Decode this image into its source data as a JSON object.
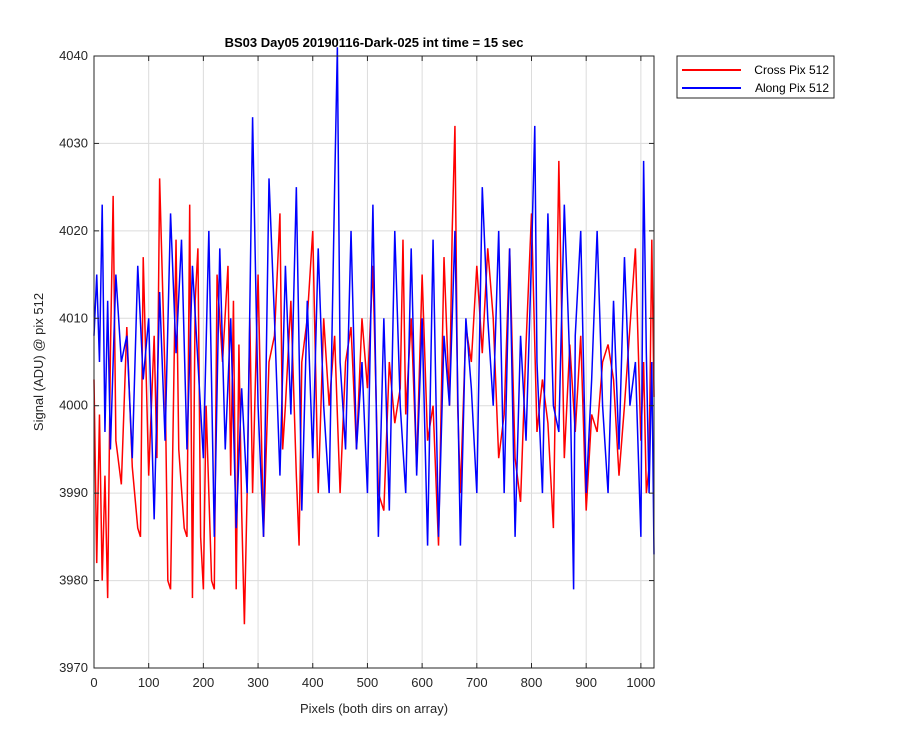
{
  "chart_data": {
    "type": "line",
    "title": "BS03 Day05 20190116-Dark-025 int time = 15 sec",
    "xlabel": "Pixels (both dirs on array)",
    "ylabel": "Signal (ADU) @ pix 512",
    "xlim": [
      0,
      1024
    ],
    "ylim": [
      3970,
      4040
    ],
    "xticks": [
      "0",
      "100",
      "200",
      "300",
      "400",
      "500",
      "600",
      "700",
      "800",
      "900",
      "1000"
    ],
    "yticks": [
      "3970",
      "3980",
      "3990",
      "4000",
      "4010",
      "4020",
      "4030",
      "4040"
    ],
    "grid": true,
    "legend_position": "outside top-right",
    "series": [
      {
        "name": "Cross Pix 512",
        "color": "#ff0000",
        "points": [
          [
            0,
            4003
          ],
          [
            5,
            3982
          ],
          [
            10,
            3999
          ],
          [
            15,
            3980
          ],
          [
            20,
            3992
          ],
          [
            25,
            3978
          ],
          [
            30,
            4006
          ],
          [
            35,
            4024
          ],
          [
            40,
            3996
          ],
          [
            50,
            3991
          ],
          [
            60,
            4009
          ],
          [
            70,
            3993
          ],
          [
            80,
            3986
          ],
          [
            85,
            3985
          ],
          [
            90,
            4017
          ],
          [
            100,
            3992
          ],
          [
            110,
            4008
          ],
          [
            115,
            3994
          ],
          [
            120,
            4026
          ],
          [
            130,
            4003
          ],
          [
            135,
            3980
          ],
          [
            140,
            3979
          ],
          [
            150,
            4019
          ],
          [
            155,
            3995
          ],
          [
            165,
            3986
          ],
          [
            170,
            3985
          ],
          [
            175,
            4023
          ],
          [
            180,
            3978
          ],
          [
            185,
            4012
          ],
          [
            190,
            4018
          ],
          [
            195,
            3985
          ],
          [
            200,
            3979
          ],
          [
            205,
            4000
          ],
          [
            210,
            3990
          ],
          [
            215,
            3980
          ],
          [
            220,
            3979
          ],
          [
            225,
            4015
          ],
          [
            235,
            4005
          ],
          [
            245,
            4016
          ],
          [
            250,
            3992
          ],
          [
            255,
            4012
          ],
          [
            260,
            3979
          ],
          [
            265,
            4007
          ],
          [
            270,
            3988
          ],
          [
            275,
            3975
          ],
          [
            280,
            3990
          ],
          [
            285,
            4010
          ],
          [
            290,
            3990
          ],
          [
            300,
            4015
          ],
          [
            310,
            3985
          ],
          [
            320,
            4005
          ],
          [
            330,
            4008
          ],
          [
            340,
            4022
          ],
          [
            345,
            3995
          ],
          [
            350,
            4000
          ],
          [
            360,
            4012
          ],
          [
            370,
            3992
          ],
          [
            375,
            3984
          ],
          [
            380,
            4005
          ],
          [
            390,
            4010
          ],
          [
            400,
            4020
          ],
          [
            410,
            3990
          ],
          [
            420,
            4010
          ],
          [
            430,
            4000
          ],
          [
            440,
            4008
          ],
          [
            450,
            3990
          ],
          [
            460,
            4005
          ],
          [
            470,
            4009
          ],
          [
            480,
            3995
          ],
          [
            490,
            4010
          ],
          [
            500,
            4002
          ],
          [
            510,
            4016
          ],
          [
            520,
            3990
          ],
          [
            530,
            3988
          ],
          [
            540,
            4005
          ],
          [
            550,
            3998
          ],
          [
            560,
            4002
          ],
          [
            565,
            4019
          ],
          [
            570,
            3999
          ],
          [
            580,
            4010
          ],
          [
            590,
            3993
          ],
          [
            600,
            4015
          ],
          [
            610,
            3996
          ],
          [
            620,
            4000
          ],
          [
            630,
            3984
          ],
          [
            640,
            4017
          ],
          [
            650,
            4000
          ],
          [
            655,
            4020
          ],
          [
            660,
            4032
          ],
          [
            665,
            4000
          ],
          [
            670,
            3990
          ],
          [
            680,
            4009
          ],
          [
            690,
            4005
          ],
          [
            700,
            4016
          ],
          [
            710,
            4006
          ],
          [
            720,
            4018
          ],
          [
            730,
            4010
          ],
          [
            740,
            3994
          ],
          [
            750,
            3999
          ],
          [
            760,
            4018
          ],
          [
            770,
            3994
          ],
          [
            780,
            3989
          ],
          [
            790,
            4007
          ],
          [
            800,
            4022
          ],
          [
            810,
            3997
          ],
          [
            820,
            4003
          ],
          [
            830,
            3998
          ],
          [
            840,
            3986
          ],
          [
            850,
            4028
          ],
          [
            860,
            3994
          ],
          [
            870,
            4007
          ],
          [
            880,
            3997
          ],
          [
            890,
            4008
          ],
          [
            900,
            3988
          ],
          [
            910,
            3999
          ],
          [
            920,
            3997
          ],
          [
            930,
            4005
          ],
          [
            940,
            4007
          ],
          [
            950,
            4003
          ],
          [
            960,
            3992
          ],
          [
            970,
            4000
          ],
          [
            980,
            4009
          ],
          [
            990,
            4018
          ],
          [
            1000,
            3996
          ],
          [
            1005,
            4005
          ],
          [
            1010,
            3990
          ],
          [
            1015,
            3993
          ],
          [
            1020,
            4019
          ],
          [
            1024,
            4001
          ]
        ]
      },
      {
        "name": "Along Pix 512",
        "color": "#0000ff",
        "points": [
          [
            0,
            4008
          ],
          [
            5,
            4015
          ],
          [
            10,
            4005
          ],
          [
            15,
            4023
          ],
          [
            20,
            3997
          ],
          [
            25,
            4012
          ],
          [
            30,
            3995
          ],
          [
            40,
            4015
          ],
          [
            50,
            4005
          ],
          [
            60,
            4008
          ],
          [
            70,
            3994
          ],
          [
            80,
            4016
          ],
          [
            90,
            4003
          ],
          [
            100,
            4010
          ],
          [
            110,
            3987
          ],
          [
            120,
            4013
          ],
          [
            130,
            3996
          ],
          [
            140,
            4022
          ],
          [
            150,
            4006
          ],
          [
            160,
            4019
          ],
          [
            170,
            3995
          ],
          [
            180,
            4016
          ],
          [
            190,
            4005
          ],
          [
            200,
            3994
          ],
          [
            210,
            4020
          ],
          [
            220,
            3985
          ],
          [
            230,
            4018
          ],
          [
            240,
            3995
          ],
          [
            250,
            4010
          ],
          [
            260,
            3986
          ],
          [
            270,
            4002
          ],
          [
            280,
            3990
          ],
          [
            290,
            4033
          ],
          [
            300,
            4000
          ],
          [
            310,
            3985
          ],
          [
            320,
            4026
          ],
          [
            330,
            4010
          ],
          [
            340,
            3992
          ],
          [
            350,
            4016
          ],
          [
            360,
            3999
          ],
          [
            370,
            4025
          ],
          [
            380,
            3988
          ],
          [
            390,
            4012
          ],
          [
            400,
            3994
          ],
          [
            410,
            4018
          ],
          [
            420,
            4000
          ],
          [
            430,
            3990
          ],
          [
            440,
            4025
          ],
          [
            445,
            4041
          ],
          [
            450,
            4005
          ],
          [
            460,
            3995
          ],
          [
            470,
            4020
          ],
          [
            480,
            3995
          ],
          [
            490,
            4005
          ],
          [
            500,
            3990
          ],
          [
            510,
            4023
          ],
          [
            520,
            3985
          ],
          [
            530,
            4010
          ],
          [
            540,
            3988
          ],
          [
            550,
            4020
          ],
          [
            560,
            4000
          ],
          [
            570,
            3990
          ],
          [
            580,
            4018
          ],
          [
            590,
            3992
          ],
          [
            600,
            4010
          ],
          [
            610,
            3984
          ],
          [
            620,
            4019
          ],
          [
            630,
            3985
          ],
          [
            640,
            4008
          ],
          [
            650,
            4000
          ],
          [
            660,
            4020
          ],
          [
            670,
            3984
          ],
          [
            680,
            4010
          ],
          [
            690,
            4002
          ],
          [
            700,
            3990
          ],
          [
            710,
            4025
          ],
          [
            720,
            4010
          ],
          [
            730,
            4000
          ],
          [
            740,
            4020
          ],
          [
            750,
            3990
          ],
          [
            760,
            4018
          ],
          [
            770,
            3985
          ],
          [
            780,
            4008
          ],
          [
            790,
            3996
          ],
          [
            800,
            4017
          ],
          [
            806,
            4032
          ],
          [
            810,
            4005
          ],
          [
            820,
            3990
          ],
          [
            830,
            4022
          ],
          [
            840,
            4000
          ],
          [
            850,
            3997
          ],
          [
            860,
            4023
          ],
          [
            870,
            4005
          ],
          [
            877,
            3979
          ],
          [
            880,
            4008
          ],
          [
            890,
            4020
          ],
          [
            900,
            3990
          ],
          [
            910,
            4003
          ],
          [
            920,
            4020
          ],
          [
            930,
            4000
          ],
          [
            940,
            3990
          ],
          [
            950,
            4012
          ],
          [
            960,
            3995
          ],
          [
            970,
            4017
          ],
          [
            980,
            4000
          ],
          [
            990,
            4005
          ],
          [
            1000,
            3985
          ],
          [
            1005,
            4028
          ],
          [
            1010,
            4006
          ],
          [
            1015,
            3990
          ],
          [
            1020,
            4005
          ],
          [
            1024,
            3983
          ]
        ]
      }
    ]
  }
}
